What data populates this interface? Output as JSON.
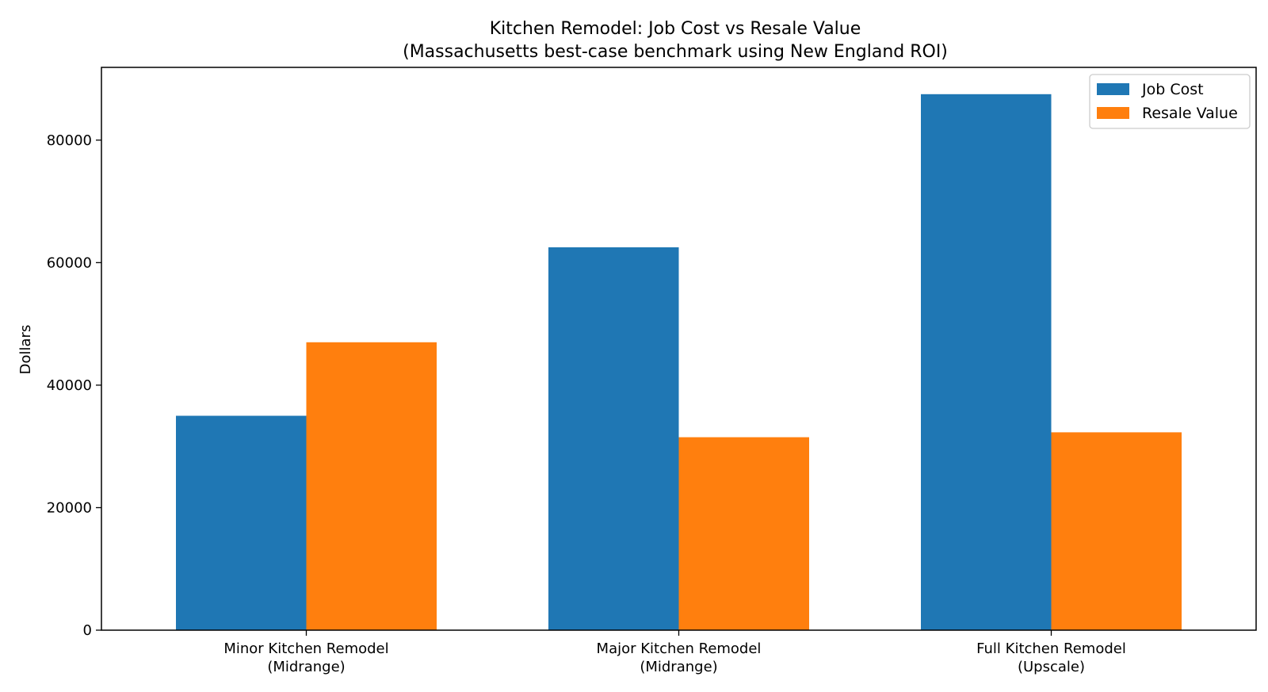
{
  "chart_data": {
    "type": "bar",
    "title": "Kitchen Remodel: Job Cost vs Resale Value",
    "subtitle": "(Massachusetts best-case benchmark using New England ROI)",
    "xlabel": "",
    "ylabel": "Dollars",
    "categories": [
      [
        "Minor Kitchen Remodel",
        "(Midrange)"
      ],
      [
        "Major Kitchen Remodel",
        "(Midrange)"
      ],
      [
        "Full Kitchen Remodel",
        "(Upscale)"
      ]
    ],
    "series": [
      {
        "name": "Job Cost",
        "color": "#1f77b4",
        "values": [
          35000,
          62500,
          87500
        ]
      },
      {
        "name": "Resale Value",
        "color": "#ff7f0e",
        "values": [
          47000,
          31500,
          32300
        ]
      }
    ],
    "ylim": [
      0,
      91875
    ],
    "yticks": [
      0,
      20000,
      40000,
      60000,
      80000
    ],
    "ytick_labels": [
      "0",
      "20000",
      "40000",
      "60000",
      "80000"
    ],
    "grid": false,
    "legend_position": "top-right"
  }
}
